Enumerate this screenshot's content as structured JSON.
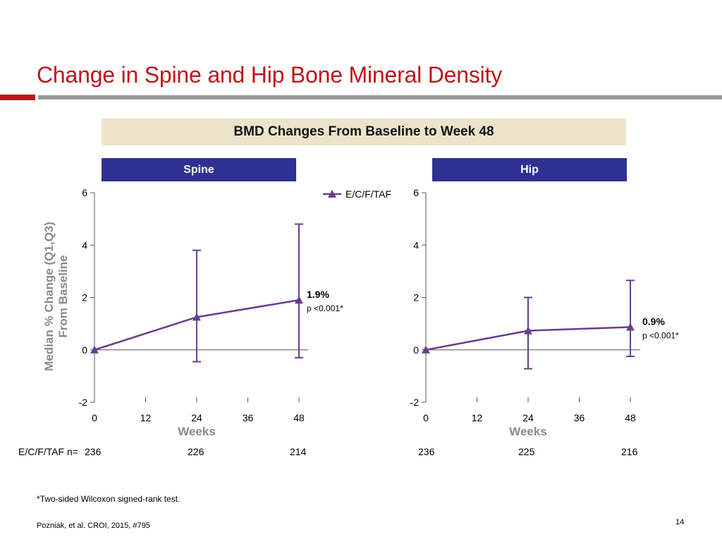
{
  "slide": {
    "title": "Change in Spine and Hip Bone Mineral Density",
    "subtitle": "BMD Changes From Baseline to Week 48",
    "footnote": "*Two-sided Wilcoxon signed-rank test.",
    "citation": "Pozniak, et al. CROI, 2015, #795",
    "page_number": "14",
    "accent_color": "#c0141b",
    "panel_header_color": "#2e3191",
    "series_color": "#6a3d8f"
  },
  "y_axis_label": [
    "Median % Change (Q1,Q3)",
    "From Baseline"
  ],
  "n_row": {
    "label": "E/C/F/TAF n=",
    "spine": [
      "236",
      "226",
      "214"
    ],
    "hip": [
      "236",
      "225",
      "216"
    ]
  },
  "chart_data": [
    {
      "type": "line",
      "panel": "Spine",
      "xlabel": "Weeks",
      "ylabel": "Median % Change (Q1,Q3) From Baseline",
      "x_ticks": [
        0,
        12,
        24,
        36,
        48
      ],
      "y_ticks": [
        -2,
        0,
        2,
        4,
        6
      ],
      "ylim": [
        -2,
        6
      ],
      "xlim": [
        0,
        48
      ],
      "legend": [
        "E/C/F/TAF"
      ],
      "series": [
        {
          "name": "E/C/F/TAF",
          "x": [
            0,
            24,
            48
          ],
          "y": [
            0,
            1.25,
            1.9
          ],
          "q1": [
            0,
            -0.45,
            -0.3
          ],
          "q3": [
            0,
            3.8,
            4.8
          ]
        }
      ],
      "annotation": {
        "value": "1.9%",
        "p": "p <0.001*"
      }
    },
    {
      "type": "line",
      "panel": "Hip",
      "xlabel": "Weeks",
      "ylabel": "",
      "x_ticks": [
        0,
        12,
        24,
        36,
        48
      ],
      "y_ticks": [
        -2,
        0,
        2,
        4,
        6
      ],
      "ylim": [
        -2,
        6
      ],
      "xlim": [
        0,
        48
      ],
      "legend": [],
      "series": [
        {
          "name": "E/C/F/TAF",
          "x": [
            0,
            24,
            48
          ],
          "y": [
            0,
            0.73,
            0.87
          ],
          "q1": [
            0,
            -0.72,
            -0.25
          ],
          "q3": [
            0,
            2.0,
            2.65
          ]
        }
      ],
      "annotation": {
        "value": "0.9%",
        "p": "p <0.001*"
      }
    }
  ]
}
